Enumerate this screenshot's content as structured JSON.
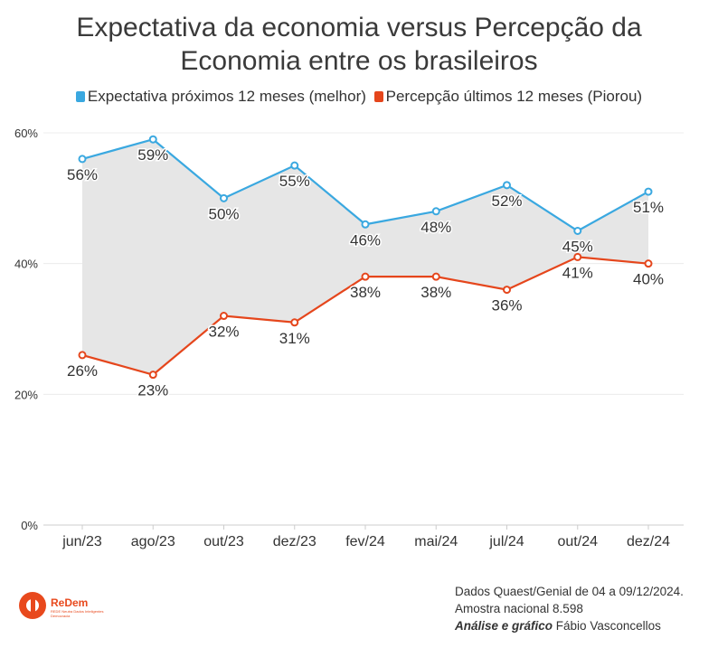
{
  "title_line1": "Expectativa da economia versus Percepção da",
  "title_line2": "Economia entre os brasileiros",
  "footer": {
    "line1": "Dados Quaest/Genial de 04 a 09/12/2024.",
    "line2": "Amostra nacional 8.598",
    "line3_bold": "Análise e gráfico",
    "line3_rest": " Fábio Vasconcellos"
  },
  "logo": {
    "name": "ReDem",
    "subtitle": "REDE Neutra Dados Inteligentes Democracia"
  },
  "chart_data": {
    "type": "line",
    "categories": [
      "jun/23",
      "ago/23",
      "out/23",
      "dez/23",
      "fev/24",
      "mai/24",
      "jul/24",
      "out/24",
      "dez/24"
    ],
    "series": [
      {
        "name": "Expectativa próximos 12 meses (melhor)",
        "color": "#3aa8e0",
        "values": [
          56,
          59,
          50,
          55,
          46,
          48,
          52,
          45,
          51
        ]
      },
      {
        "name": "Percepção últimos 12 meses (Piorou)",
        "color": "#e5461c",
        "values": [
          26,
          23,
          32,
          31,
          38,
          38,
          36,
          41,
          40
        ]
      }
    ],
    "yticks": [
      "0%",
      "20%",
      "40%",
      "60%"
    ],
    "ylim": [
      0,
      60
    ],
    "area_between_series_color": "#e6e6e6",
    "grid": true,
    "legend_position": "top"
  }
}
